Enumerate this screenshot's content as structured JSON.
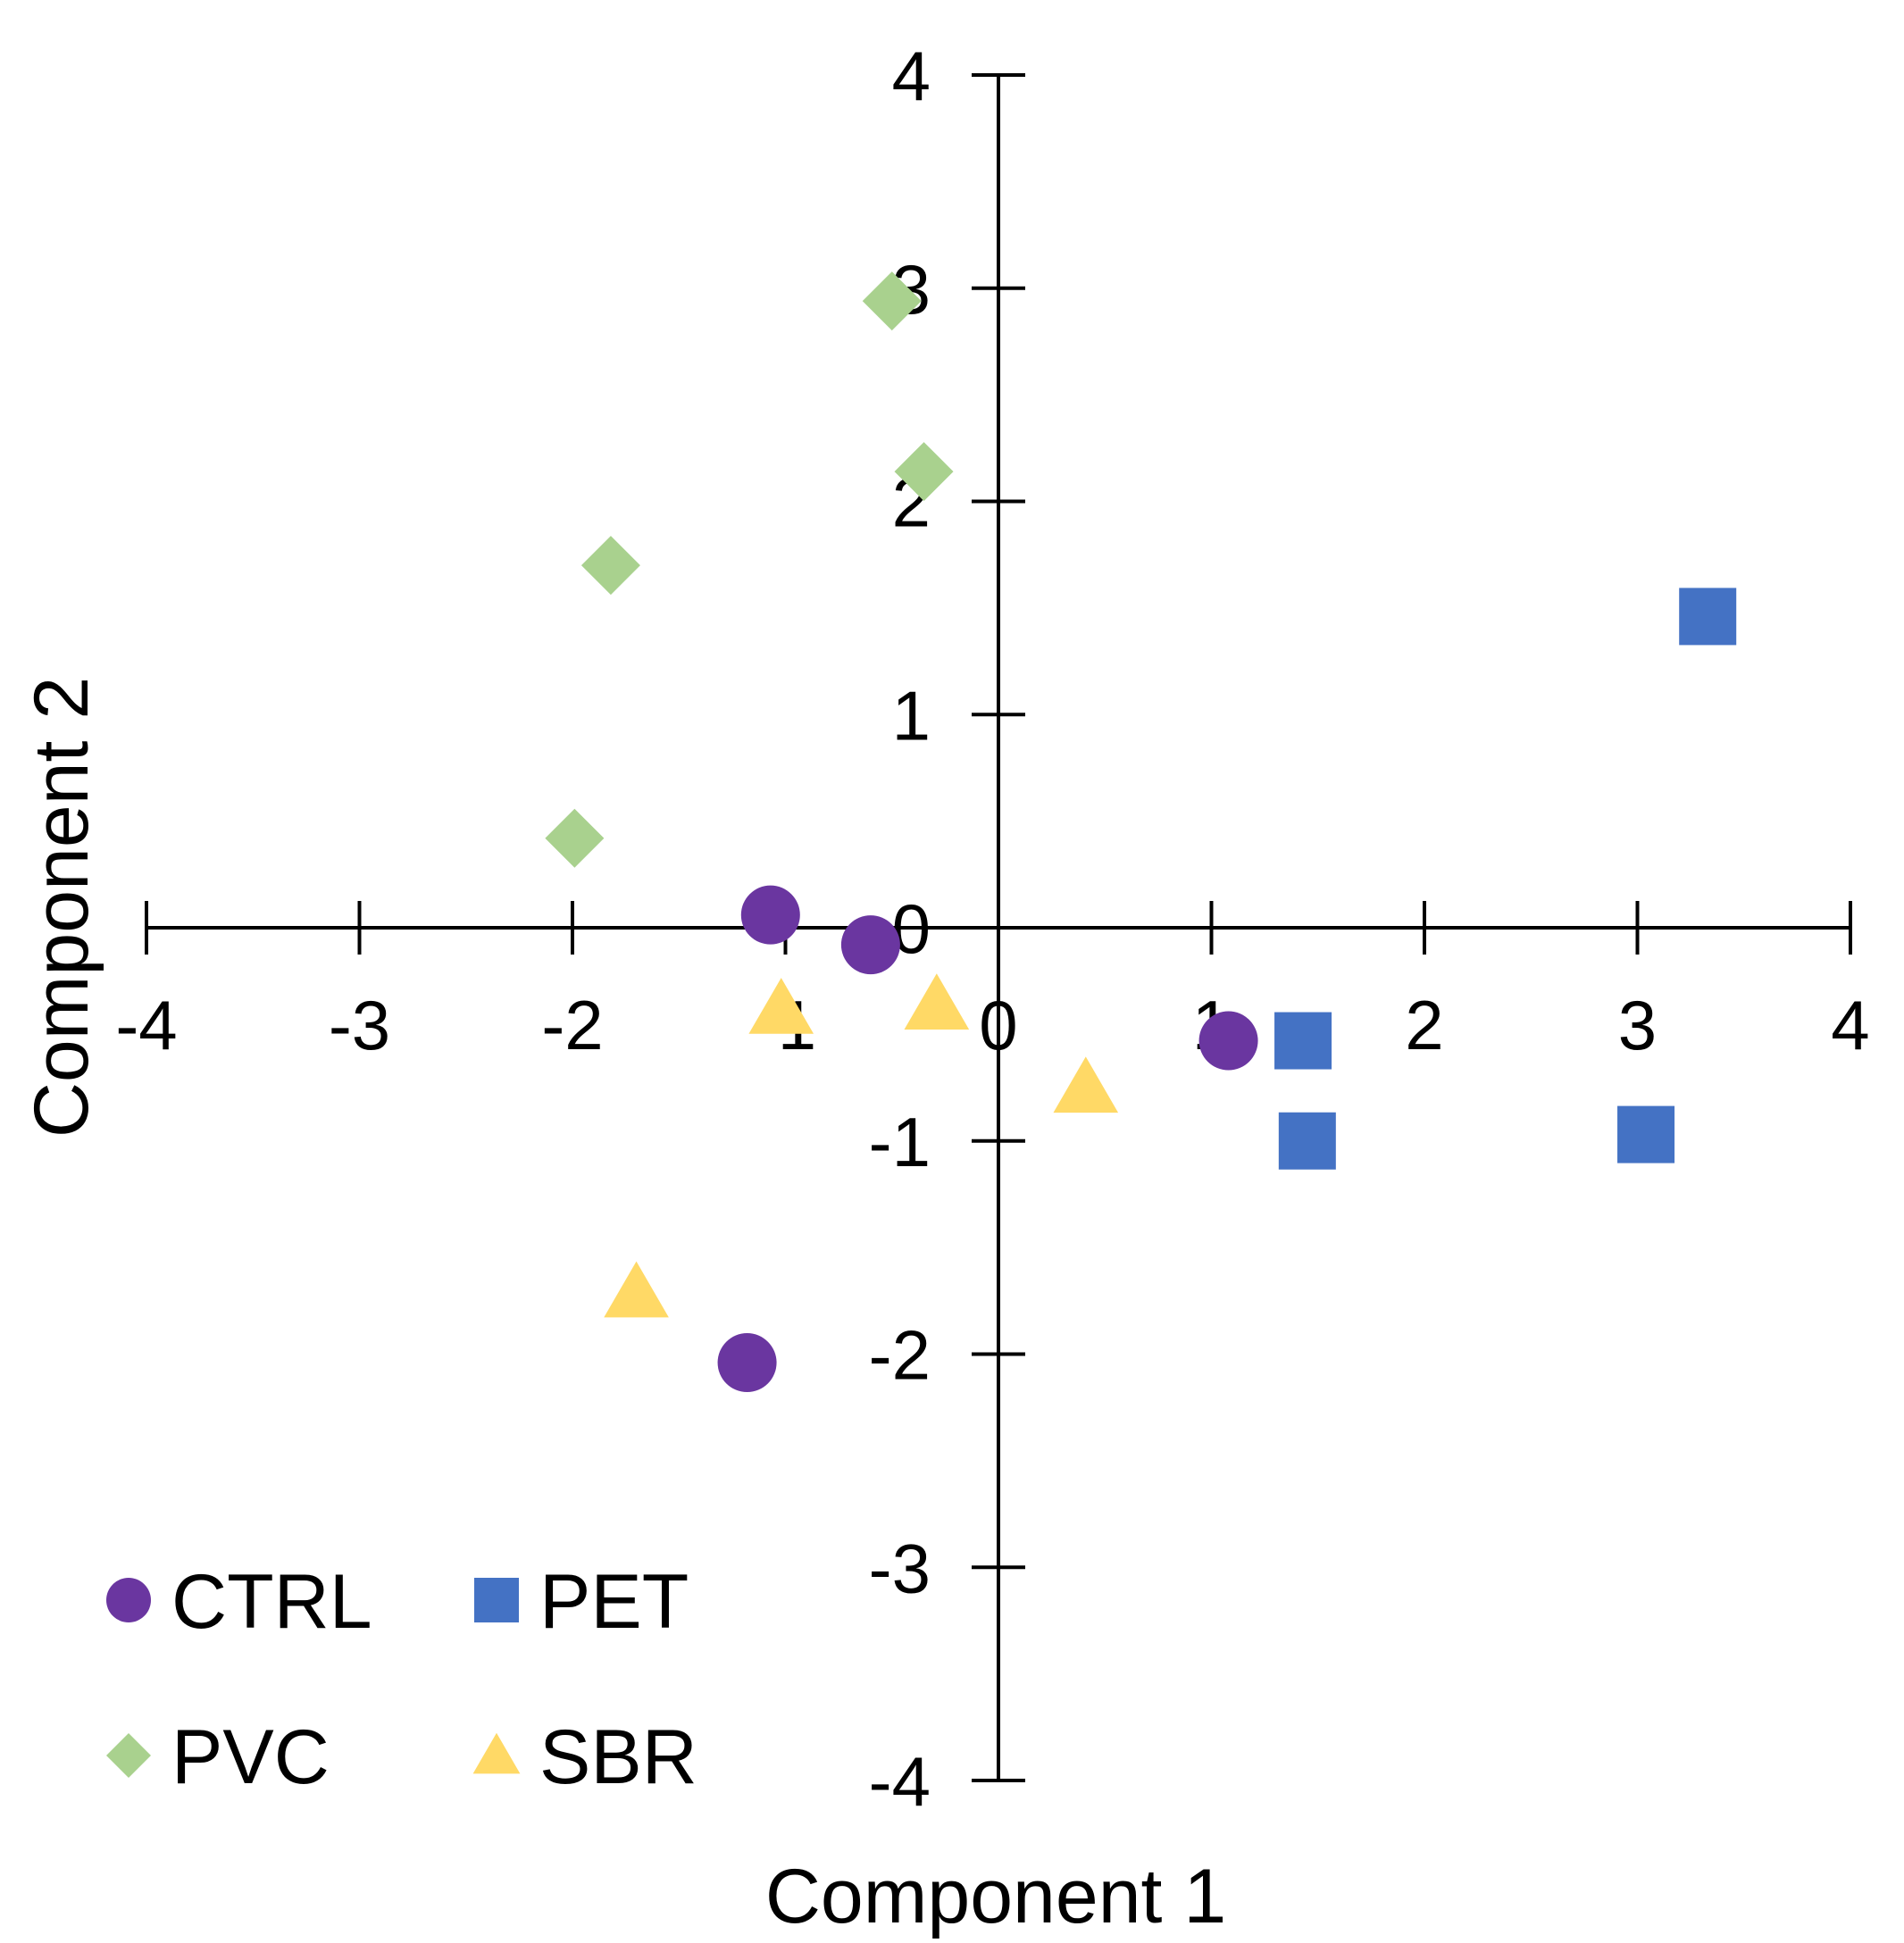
{
  "chart_data": {
    "type": "scatter",
    "title": "",
    "xlabel": "Component 1",
    "ylabel": "Component 2",
    "xlim": [
      -4,
      4
    ],
    "ylim": [
      -4,
      4
    ],
    "xticks": [
      -4,
      -3,
      -2,
      -1,
      0,
      1,
      2,
      3,
      4
    ],
    "yticks": [
      -4,
      -3,
      -2,
      -1,
      0,
      1,
      2,
      3,
      4
    ],
    "grid": false,
    "legend_position": "bottom-left",
    "series": [
      {
        "name": "CTRL",
        "marker": "circle",
        "color": "#6A36A0",
        "points": [
          {
            "x": -1.07,
            "y": 0.06
          },
          {
            "x": -0.6,
            "y": -0.08
          },
          {
            "x": 1.08,
            "y": -0.53
          },
          {
            "x": -1.18,
            "y": -2.04
          }
        ]
      },
      {
        "name": "PET",
        "marker": "square",
        "color": "#4472C4",
        "points": [
          {
            "x": 3.33,
            "y": 1.46
          },
          {
            "x": 1.43,
            "y": -0.53
          },
          {
            "x": 1.45,
            "y": -1.0
          },
          {
            "x": 3.04,
            "y": -0.97
          }
        ]
      },
      {
        "name": "PVC",
        "marker": "diamond",
        "color": "#A9D18E",
        "points": [
          {
            "x": -0.5,
            "y": 2.94
          },
          {
            "x": -0.35,
            "y": 2.14
          },
          {
            "x": -1.82,
            "y": 1.7
          },
          {
            "x": -1.99,
            "y": 0.42
          }
        ]
      },
      {
        "name": "SBR",
        "marker": "triangle",
        "color": "#FFD966",
        "points": [
          {
            "x": -1.02,
            "y": -0.38
          },
          {
            "x": -0.29,
            "y": -0.36
          },
          {
            "x": 0.41,
            "y": -0.75
          },
          {
            "x": -1.7,
            "y": -1.71
          }
        ]
      }
    ]
  }
}
